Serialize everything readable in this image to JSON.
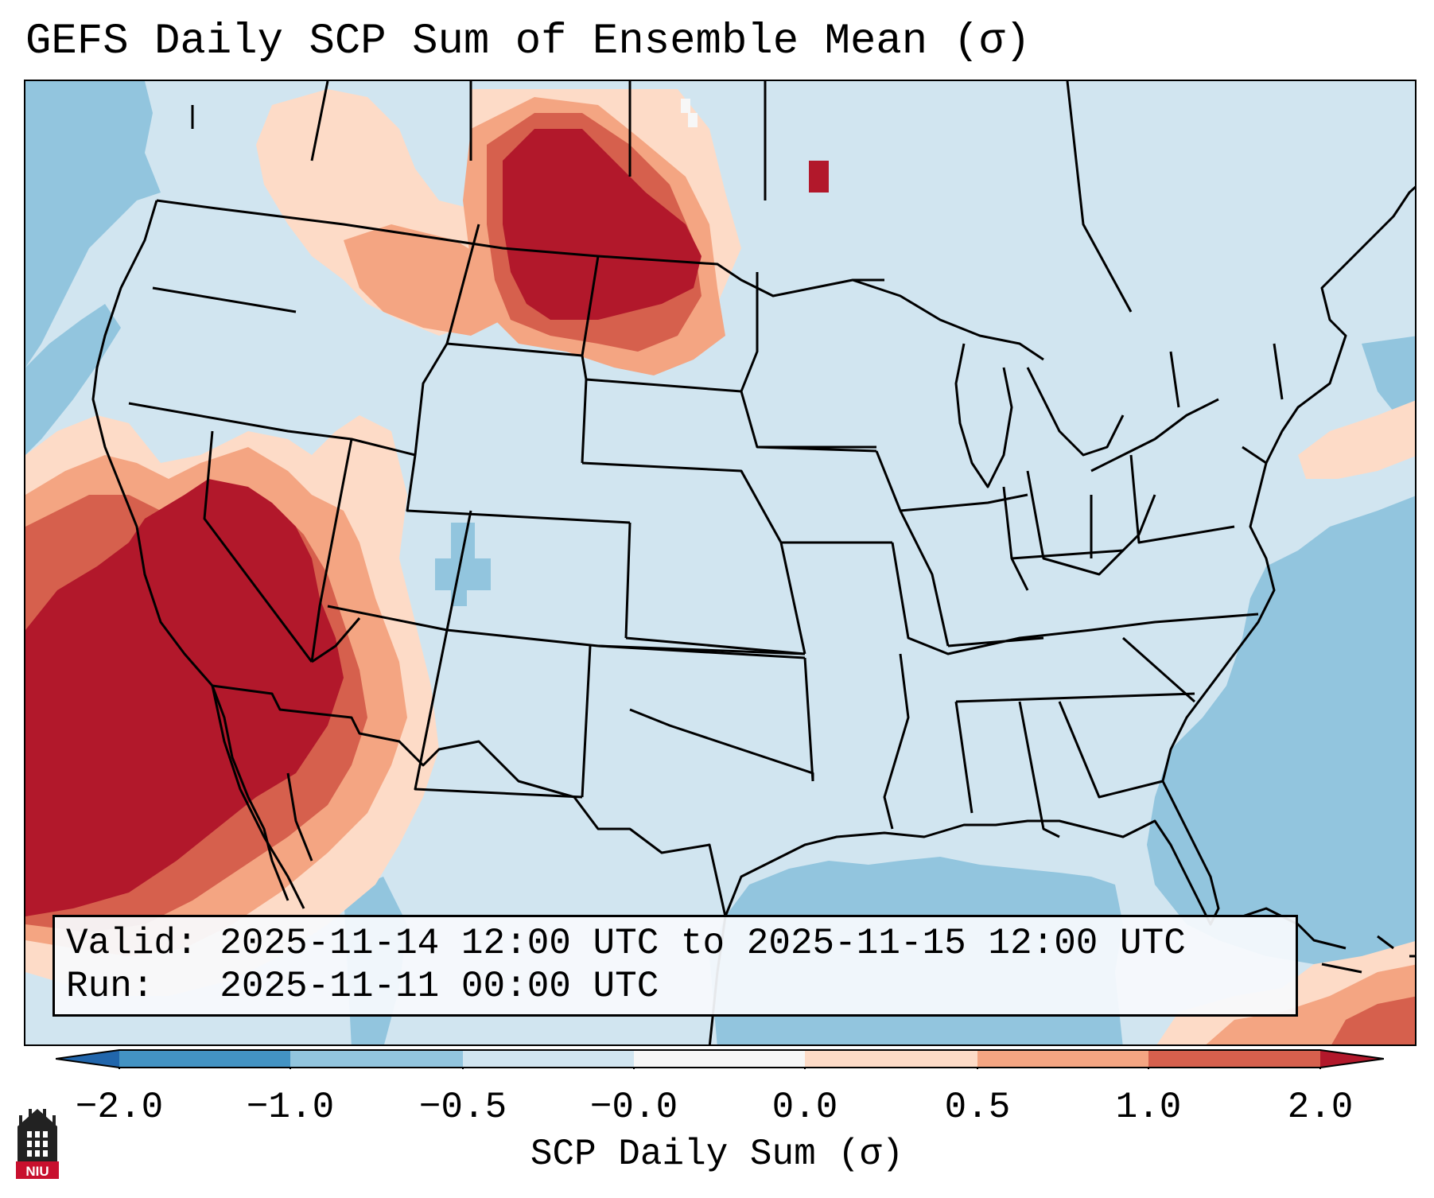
{
  "title": "GEFS Daily SCP Sum of Ensemble Mean (σ)",
  "info": {
    "valid_line": "Valid: 2025-11-14 12:00 UTC to 2025-11-15 12:00 UTC",
    "run_line": "Run:   2025-11-11 00:00 UTC"
  },
  "colorbar": {
    "label": "SCP Daily Sum (σ)",
    "ticks": [
      "−2.0",
      "−1.0",
      "−0.5",
      "−0.0",
      "0.0",
      "0.5",
      "1.0",
      "2.0"
    ],
    "bins": [
      {
        "from": -2.0,
        "to": -1.0,
        "color": "#4393c3"
      },
      {
        "from": -1.0,
        "to": -0.5,
        "color": "#92c5de"
      },
      {
        "from": -0.5,
        "to": -0.0,
        "color": "#d1e5f0"
      },
      {
        "from": -0.0,
        "to": 0.0,
        "color": "#f7f7f7"
      },
      {
        "from": 0.0,
        "to": 0.5,
        "color": "#fddbc7"
      },
      {
        "from": 0.5,
        "to": 1.0,
        "color": "#f4a582"
      },
      {
        "from": 1.0,
        "to": 2.0,
        "color": "#d6604d"
      }
    ],
    "under_color": "#2166ac",
    "over_color": "#b2182b"
  },
  "colors": {
    "background": "#d1e5f0",
    "ocean_anomaly": "#92c5de",
    "light_red": "#fddbc7",
    "mid_red": "#f4a582",
    "red": "#d6604d",
    "dark_red": "#b2182b"
  },
  "logo": {
    "text": "NIU",
    "color": "#c8102e"
  }
}
